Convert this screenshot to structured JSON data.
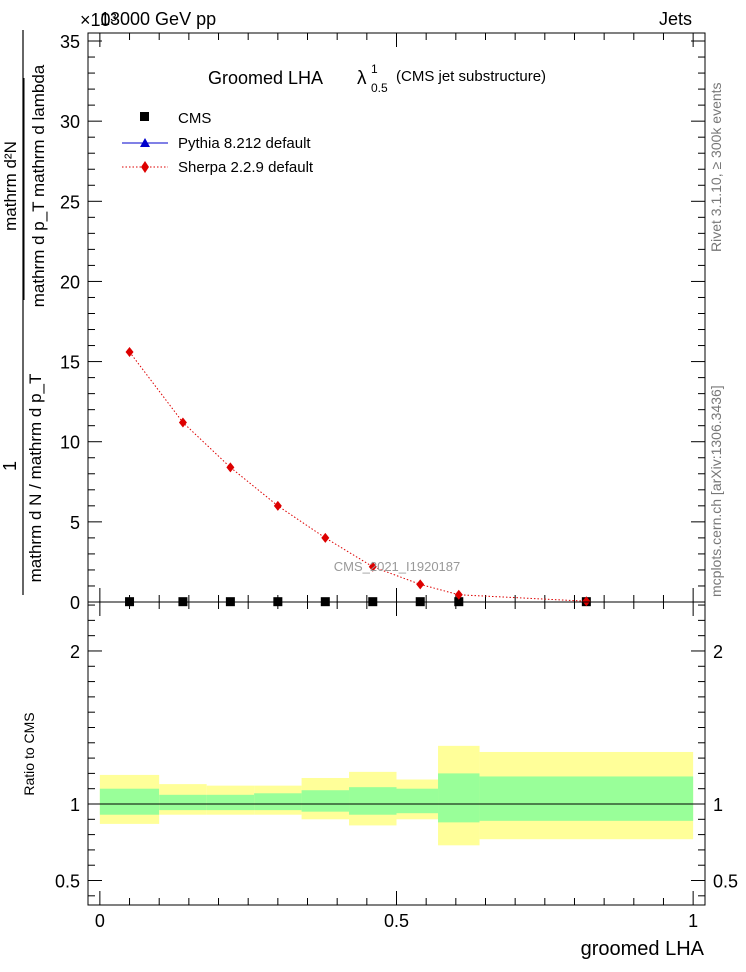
{
  "header": {
    "energy": "13000 GeV pp",
    "process": "Jets",
    "multiplier": "×10³"
  },
  "side": {
    "rivet": "Rivet 3.1.10, ≥ 300k events",
    "mcplots": "mcplots.cern.ch [arXiv:1306.3436]"
  },
  "watermark": "CMS_2021_I1920187",
  "chart_data": {
    "type": "line",
    "title": {
      "main": "Groomed LHA",
      "symbol": "λ",
      "sup": "1",
      "sub": "0.5",
      "note": "(CMS jet substructure)"
    },
    "xlabel": "groomed LHA",
    "ylabel": {
      "numerator": "1",
      "denominator": "mathrm d N / mathrm d p_T",
      "numerator2": "mathrm d²N",
      "denominator2": "mathrm d p_T mathrm d lambda"
    },
    "ylabel_ratio": "Ratio to CMS",
    "xlim": [
      -0.02,
      1.02
    ],
    "ylim": [
      0,
      35.5
    ],
    "ylim_ratio": [
      0.34,
      2.32
    ],
    "x_ticks": [
      {
        "value": 0,
        "label": "0"
      },
      {
        "value": 0.5,
        "label": "0.5"
      },
      {
        "value": 1,
        "label": "1"
      }
    ],
    "y_ticks": [
      {
        "value": 0,
        "label": "0"
      },
      {
        "value": 5,
        "label": "5"
      },
      {
        "value": 10,
        "label": "10"
      },
      {
        "value": 15,
        "label": "15"
      },
      {
        "value": 20,
        "label": "20"
      },
      {
        "value": 25,
        "label": "25"
      },
      {
        "value": 30,
        "label": "30"
      },
      {
        "value": 35,
        "label": "35"
      }
    ],
    "ratio_ticks": [
      {
        "value": 0.5,
        "label": "0.5"
      },
      {
        "value": 1,
        "label": "1"
      },
      {
        "value": 2,
        "label": "2"
      }
    ],
    "series": [
      {
        "name": "CMS",
        "marker": "square",
        "color": "#000000",
        "x": [
          0.05,
          0.14,
          0.22,
          0.3,
          0.38,
          0.46,
          0.54,
          0.605,
          0.82
        ],
        "y": [
          0.02,
          0.02,
          0.02,
          0.02,
          0.02,
          0.02,
          0.02,
          0.02,
          0.02
        ]
      },
      {
        "name": "Pythia 8.212 default",
        "marker": "triangle",
        "color": "#0000cc",
        "x": [],
        "y": []
      },
      {
        "name": "Sherpa 2.2.9 default",
        "marker": "diamond",
        "color": "#dd0000",
        "x": [
          0.05,
          0.14,
          0.22,
          0.3,
          0.38,
          0.46,
          0.54,
          0.605,
          0.82
        ],
        "y": [
          15.6,
          11.2,
          8.4,
          6.0,
          4.0,
          2.2,
          1.1,
          0.45,
          0.05
        ]
      }
    ],
    "ratio_bands": [
      {
        "xlo": 0.0,
        "xhi": 0.1,
        "inner": [
          0.93,
          1.1
        ],
        "outer": [
          0.87,
          1.19
        ]
      },
      {
        "xlo": 0.1,
        "xhi": 0.18,
        "inner": [
          0.96,
          1.06
        ],
        "outer": [
          0.93,
          1.13
        ]
      },
      {
        "xlo": 0.18,
        "xhi": 0.26,
        "inner": [
          0.96,
          1.06
        ],
        "outer": [
          0.93,
          1.12
        ]
      },
      {
        "xlo": 0.26,
        "xhi": 0.34,
        "inner": [
          0.96,
          1.07
        ],
        "outer": [
          0.93,
          1.12
        ]
      },
      {
        "xlo": 0.34,
        "xhi": 0.42,
        "inner": [
          0.95,
          1.09
        ],
        "outer": [
          0.9,
          1.17
        ]
      },
      {
        "xlo": 0.42,
        "xhi": 0.5,
        "inner": [
          0.93,
          1.11
        ],
        "outer": [
          0.86,
          1.21
        ]
      },
      {
        "xlo": 0.5,
        "xhi": 0.57,
        "inner": [
          0.94,
          1.1
        ],
        "outer": [
          0.9,
          1.16
        ]
      },
      {
        "xlo": 0.57,
        "xhi": 0.64,
        "inner": [
          0.88,
          1.2
        ],
        "outer": [
          0.73,
          1.38
        ]
      },
      {
        "xlo": 0.64,
        "xhi": 1.0,
        "inner": [
          0.89,
          1.18
        ],
        "outer": [
          0.77,
          1.34
        ]
      }
    ],
    "ratio_reference": 1
  }
}
